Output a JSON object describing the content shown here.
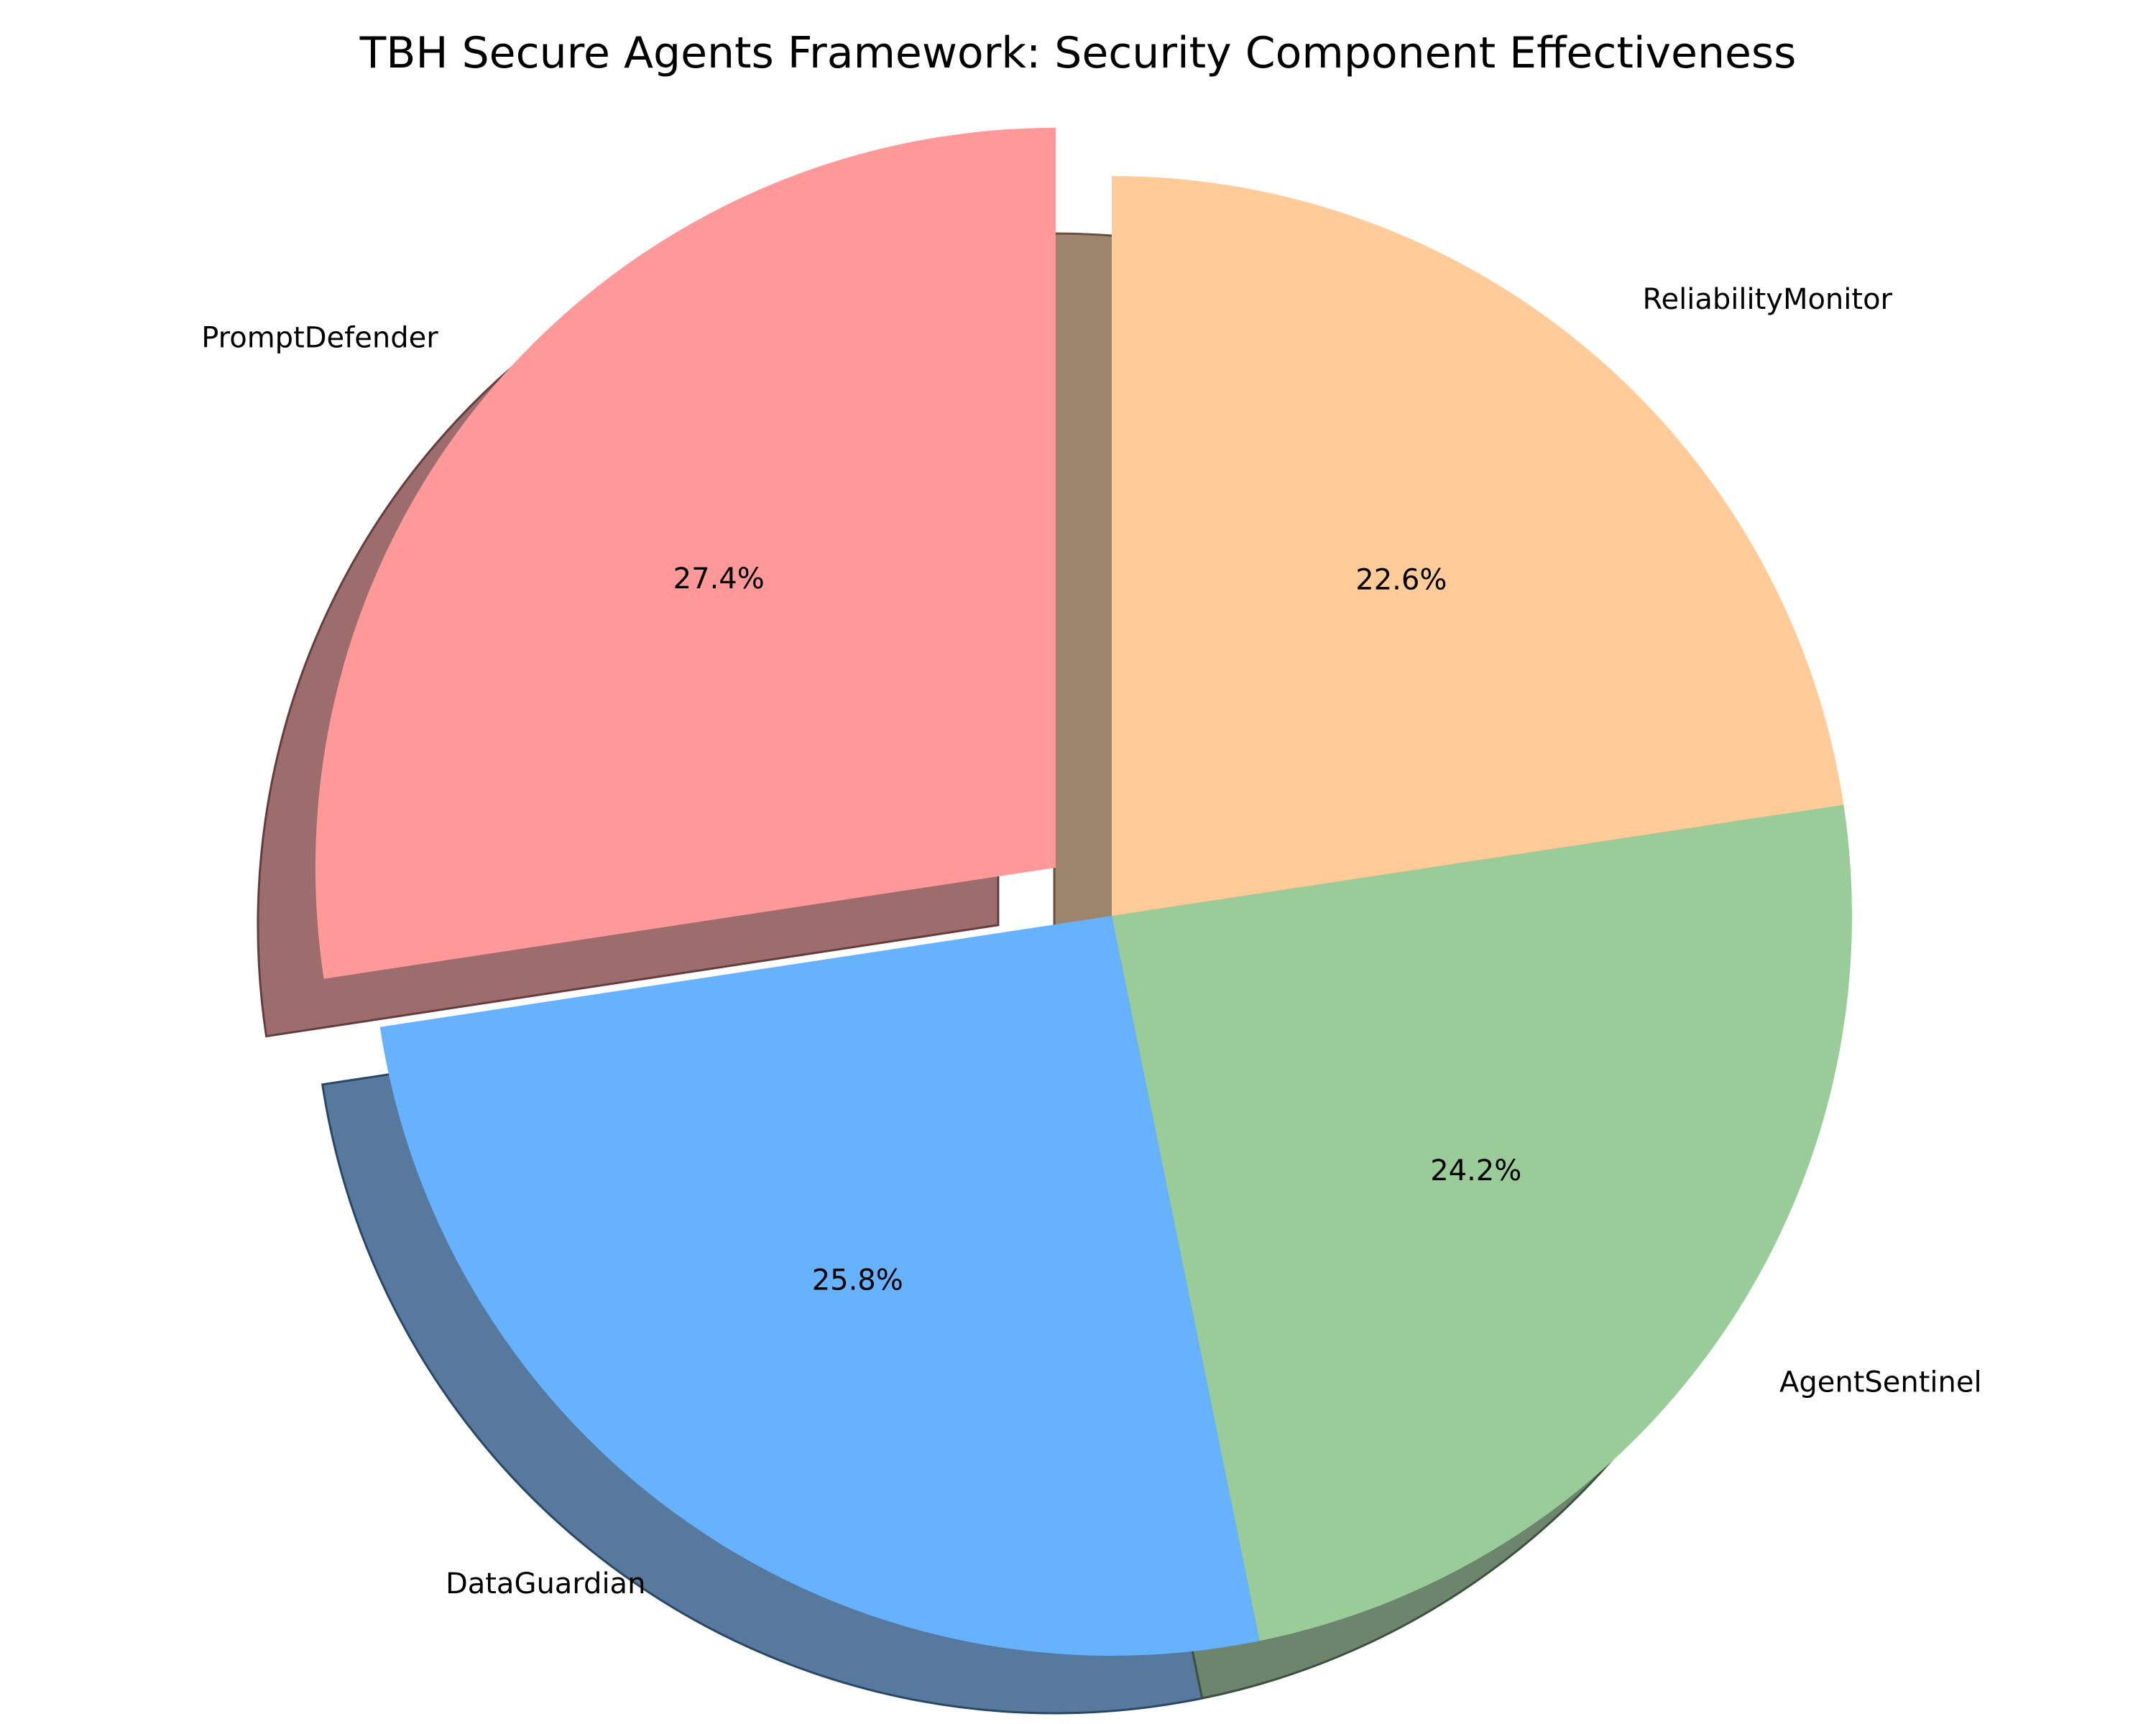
{
  "chart_data": {
    "type": "pie",
    "title": "TBH Secure Agents Framework: Security Component Effectiveness",
    "categories": [
      "PromptDefender",
      "DataGuardian",
      "AgentSentinel",
      "ReliabilityMonitor"
    ],
    "values": [
      27.4,
      25.8,
      24.2,
      22.6
    ],
    "value_labels": [
      "27.4%",
      "25.8%",
      "24.2%",
      "22.6%"
    ],
    "colors": [
      "#FF9999",
      "#66B2FF",
      "#99CC99",
      "#FFCC99"
    ],
    "exploded": "PromptDefender",
    "start_angle_deg": 90,
    "direction": "counterclockwise",
    "shadow": true,
    "legend": "none",
    "grid": false
  }
}
